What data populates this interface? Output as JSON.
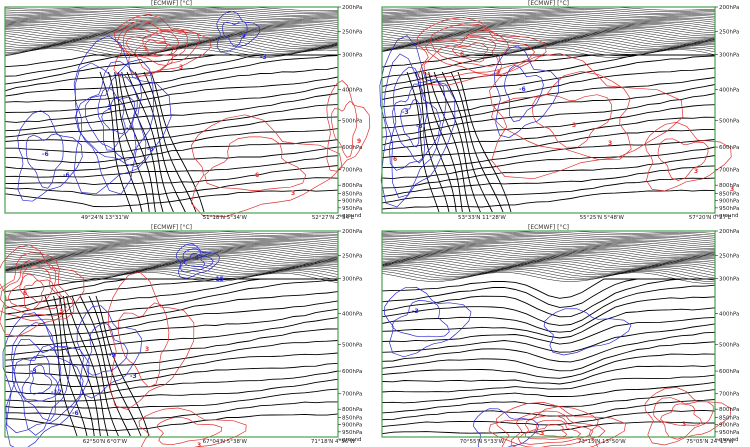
{
  "chart_data": [
    {
      "type": "contour",
      "title": "[ECMWF] [°C]",
      "y_ticks": [
        "200hPa",
        "250hPa",
        "300hPa",
        "400hPa",
        "500hPa",
        "600hPa",
        "700hPa",
        "800hPa",
        "850hPa",
        "900hPa",
        "950hPa",
        "ground"
      ],
      "x_ticks": [
        "49°24'N 13°31'W",
        "51°18'N 5°34'W",
        "52°27'N 2°54'E"
      ],
      "warm_labels": [
        "3",
        "6",
        "9",
        "3",
        "3",
        "6"
      ],
      "cold_labels": [
        "-3",
        "-6",
        "-3",
        "-3",
        "-6",
        "-3",
        "-3"
      ],
      "colors": {
        "isentropes": "#000000",
        "warm": "#e03030",
        "cold": "#2a2ad0",
        "frame": "#4aa04a"
      }
    },
    {
      "type": "contour",
      "title": "[ECMWF] [°C]",
      "y_ticks": [
        "200hPa",
        "250hPa",
        "300hPa",
        "400hPa",
        "500hPa",
        "600hPa",
        "700hPa",
        "800hPa",
        "850hPa",
        "900hPa",
        "950hPa",
        "ground"
      ],
      "x_ticks": [
        "53°33'N 11°28'W",
        "55°25'N 5°48'W",
        "57°20'N 0°27'E"
      ],
      "warm_labels": [
        "6",
        "3",
        "3",
        "3",
        "3",
        "3"
      ],
      "cold_labels": [
        "-3",
        "-6",
        "-3"
      ],
      "colors": {
        "isentropes": "#000000",
        "warm": "#e03030",
        "cold": "#2a2ad0",
        "frame": "#4aa04a"
      }
    },
    {
      "type": "contour",
      "title": "[ECMWF] [°C]",
      "y_ticks": [
        "200hPa",
        "250hPa",
        "300hPa",
        "400hPa",
        "500hPa",
        "600hPa",
        "700hPa",
        "800hPa",
        "850hPa",
        "900hPa",
        "950hPa",
        "ground"
      ],
      "x_ticks": [
        "62°50'N 6°07'W",
        "67°04'N 5°38'W",
        "71°18'N 4°56'W"
      ],
      "warm_labels": [
        "6",
        "3",
        "3",
        "3"
      ],
      "cold_labels": [
        "-3",
        "-6",
        "-9",
        "-12",
        "-15",
        "-3",
        "-6"
      ],
      "colors": {
        "isentropes": "#000000",
        "warm": "#e03030",
        "cold": "#2a2ad0",
        "frame": "#4aa04a"
      }
    },
    {
      "type": "contour",
      "title": "[ECMWF] [°C]",
      "y_ticks": [
        "200hPa",
        "250hPa",
        "300hPa",
        "400hPa",
        "500hPa",
        "600hPa",
        "700hPa",
        "800hPa",
        "850hPa",
        "900hPa",
        "950hPa",
        "ground"
      ],
      "x_ticks": [
        "70°55'N 5°33'W",
        "73°15'N 13°50'W",
        "75°05'N 24°15'W"
      ],
      "warm_labels": [
        "3",
        "3"
      ],
      "cold_labels": [
        "-3"
      ],
      "colors": {
        "isentropes": "#000000",
        "warm": "#e03030",
        "cold": "#2a2ad0",
        "frame": "#4aa04a"
      }
    }
  ]
}
